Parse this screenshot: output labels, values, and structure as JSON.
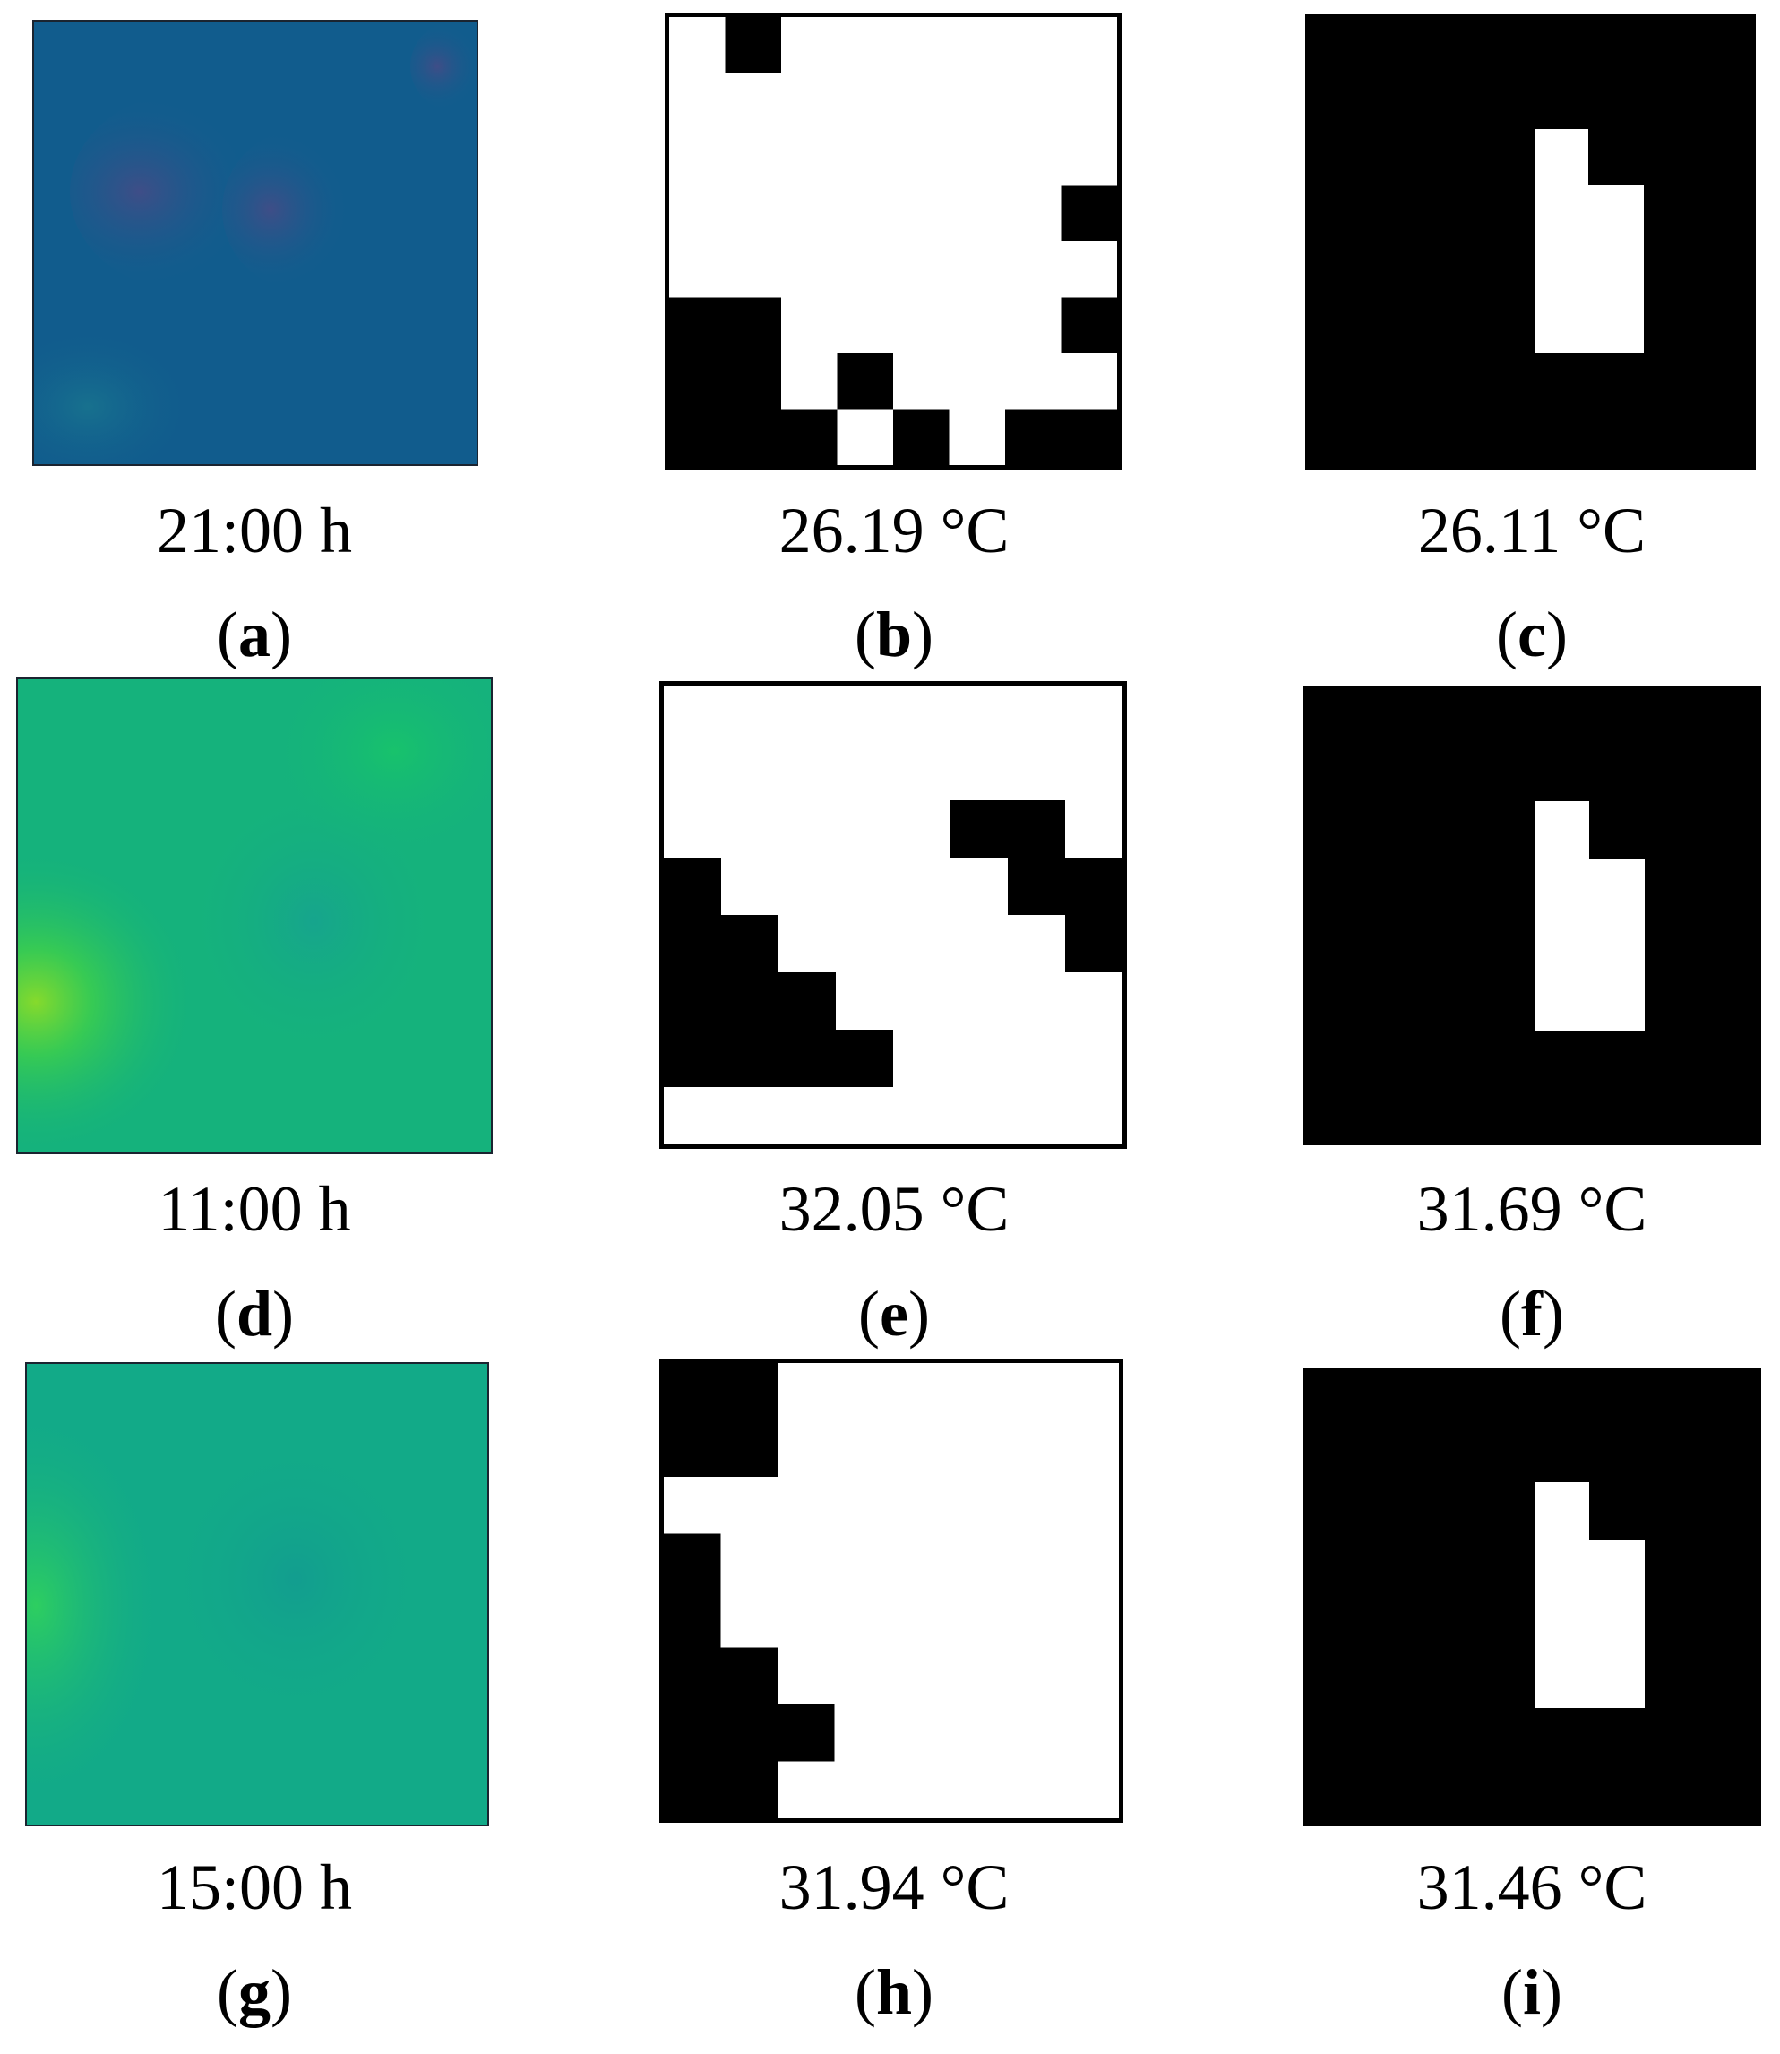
{
  "panels": [
    {
      "id": "a",
      "kind": "thermal",
      "caption": "21:00 h"
    },
    {
      "id": "b",
      "kind": "mask",
      "caption": "26.19 °C"
    },
    {
      "id": "c",
      "kind": "mask",
      "caption": "26.11 °C"
    },
    {
      "id": "d",
      "kind": "thermal",
      "caption": "11:00 h"
    },
    {
      "id": "e",
      "kind": "mask",
      "caption": "32.05 °C"
    },
    {
      "id": "f",
      "kind": "mask",
      "caption": "31.69 °C"
    },
    {
      "id": "g",
      "kind": "thermal",
      "caption": "15:00 h"
    },
    {
      "id": "h",
      "kind": "mask",
      "caption": "31.94 °C"
    },
    {
      "id": "i",
      "kind": "mask",
      "caption": "31.46 °C"
    }
  ],
  "colors": {
    "night_base": "#0f5c8c",
    "night_spot": "#3d4f86",
    "morning_base": "#14b573",
    "morning_hot": "#7fd634",
    "afternoon_base": "#12a986",
    "afternoon_hot": "#38d35c",
    "mask_fill": "#000000",
    "mask_bg": "#ffffff"
  }
}
